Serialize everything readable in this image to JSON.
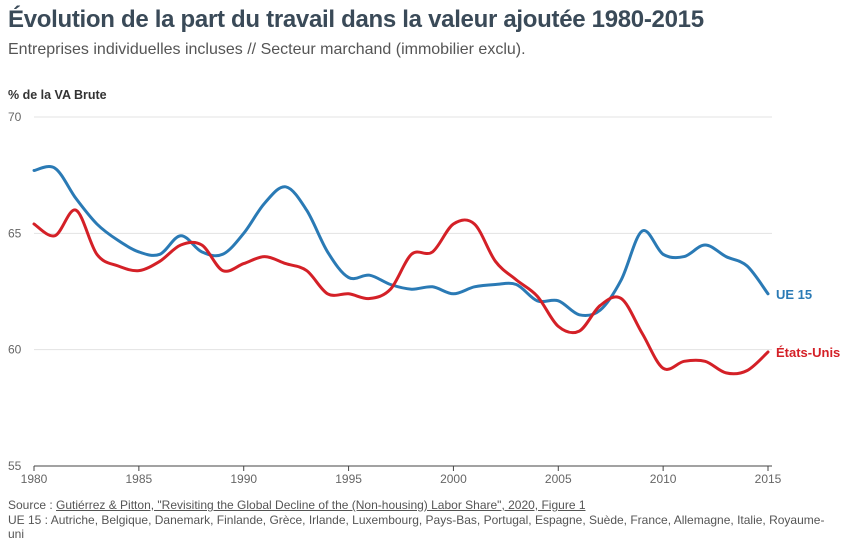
{
  "title": "Évolution de la part du travail dans la valeur ajoutée 1980-2015",
  "subtitle": "Entreprises individuelles incluses // Secteur marchand (immobilier exclu).",
  "ylabel": "% de la VA Brute",
  "source_prefix": "Source : ",
  "source_link": "Gutiérrez & Pitton, \"Revisiting the Global Decline of the (Non-housing) Labor Share\", 2020, Figure 1",
  "note": "UE 15 : Autriche, Belgique, Danemark, Finlande, Grèce, Irlande, Luxembourg, Pays-Bas, Portugal, Espagne, Suède, France, Allemagne, Italie, Royaume-uni",
  "chart_data": {
    "type": "line",
    "title": "Évolution de la part du travail dans la valeur ajoutée 1980-2015",
    "ylabel": "% de la VA Brute",
    "xlim": [
      1980,
      2015
    ],
    "ylim": [
      55,
      70
    ],
    "yticks": [
      55,
      60,
      65,
      70
    ],
    "xticks": [
      1980,
      1985,
      1990,
      1995,
      2000,
      2005,
      2010,
      2015
    ],
    "grid": "horizontal",
    "legend": "direct labels at line ends",
    "x": [
      1980,
      1981,
      1982,
      1983,
      1984,
      1985,
      1986,
      1987,
      1988,
      1989,
      1990,
      1991,
      1992,
      1993,
      1994,
      1995,
      1996,
      1997,
      1998,
      1999,
      2000,
      2001,
      2002,
      2003,
      2004,
      2005,
      2006,
      2007,
      2008,
      2009,
      2010,
      2011,
      2012,
      2013,
      2014,
      2015
    ],
    "series": [
      {
        "name": "UE 15",
        "color": "#2a7ab5",
        "values": [
          67.7,
          67.8,
          66.5,
          65.4,
          64.7,
          64.2,
          64.1,
          64.9,
          64.2,
          64.1,
          65.0,
          66.3,
          67.0,
          66.0,
          64.2,
          63.1,
          63.2,
          62.8,
          62.6,
          62.7,
          62.4,
          62.7,
          62.8,
          62.8,
          62.1,
          62.1,
          61.5,
          61.7,
          63.0,
          65.1,
          64.1,
          64.0,
          64.5,
          64.0,
          63.6,
          62.4
        ]
      },
      {
        "name": "États-Unis",
        "color": "#d42027",
        "values": [
          65.4,
          64.9,
          66.0,
          64.1,
          63.6,
          63.4,
          63.8,
          64.5,
          64.5,
          63.4,
          63.7,
          64.0,
          63.7,
          63.4,
          62.4,
          62.4,
          62.2,
          62.6,
          64.1,
          64.2,
          65.4,
          65.4,
          63.8,
          63.0,
          62.3,
          61.0,
          60.8,
          61.9,
          62.2,
          60.7,
          59.2,
          59.5,
          59.5,
          59.0,
          59.1,
          59.9
        ]
      }
    ]
  }
}
